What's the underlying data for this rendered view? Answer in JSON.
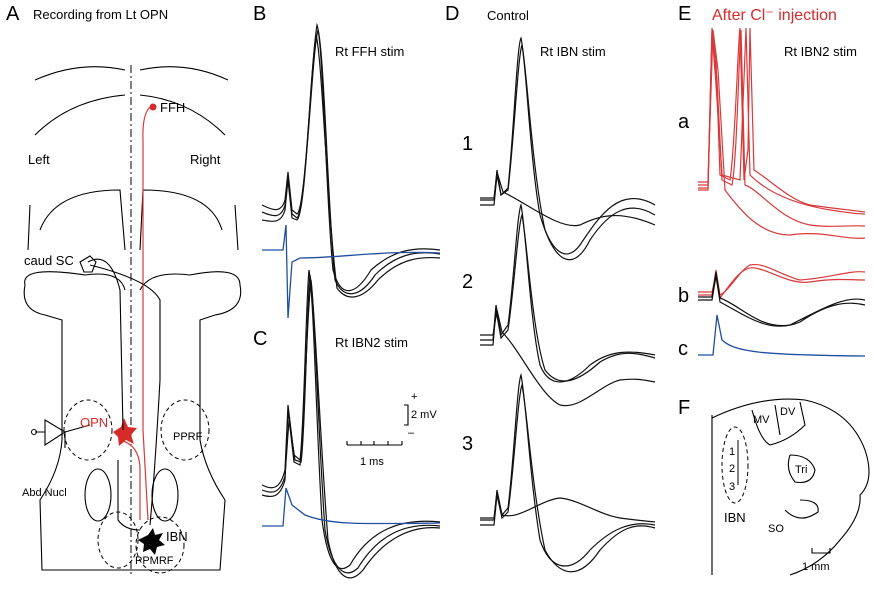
{
  "panels": {
    "A": {
      "label": "A",
      "title": "Recording from Lt OPN",
      "ffh": "FFH",
      "left": "Left",
      "right": "Right",
      "caud_sc": "caud SC",
      "opn": "OPN",
      "pprf": "PPRF",
      "abd_nucl": "Abd Nucl",
      "ibn": "IBN",
      "ppmrf": "PPMRF"
    },
    "B": {
      "label": "B",
      "title": "Rt  FFH stim"
    },
    "C": {
      "label": "C",
      "title": "Rt IBN2 stim",
      "plus": "+",
      "minus": "–",
      "voltage": "2 mV",
      "time": "1 ms"
    },
    "D": {
      "label": "D",
      "title": "Control",
      "subtitle": "Rt IBN stim",
      "rows": [
        "1",
        "2",
        "3"
      ]
    },
    "E": {
      "label": "E",
      "title": "After Cl⁻ injection",
      "subtitle": "Rt IBN2 stim",
      "rows": [
        "a",
        "b",
        "c"
      ]
    },
    "F": {
      "label": "F",
      "mv": "MV",
      "dv": "DV",
      "tri": "Tri",
      "so": "SO",
      "ibn": "IBN",
      "sites": [
        "1",
        "2",
        "3"
      ],
      "scale": "1 mm"
    }
  }
}
